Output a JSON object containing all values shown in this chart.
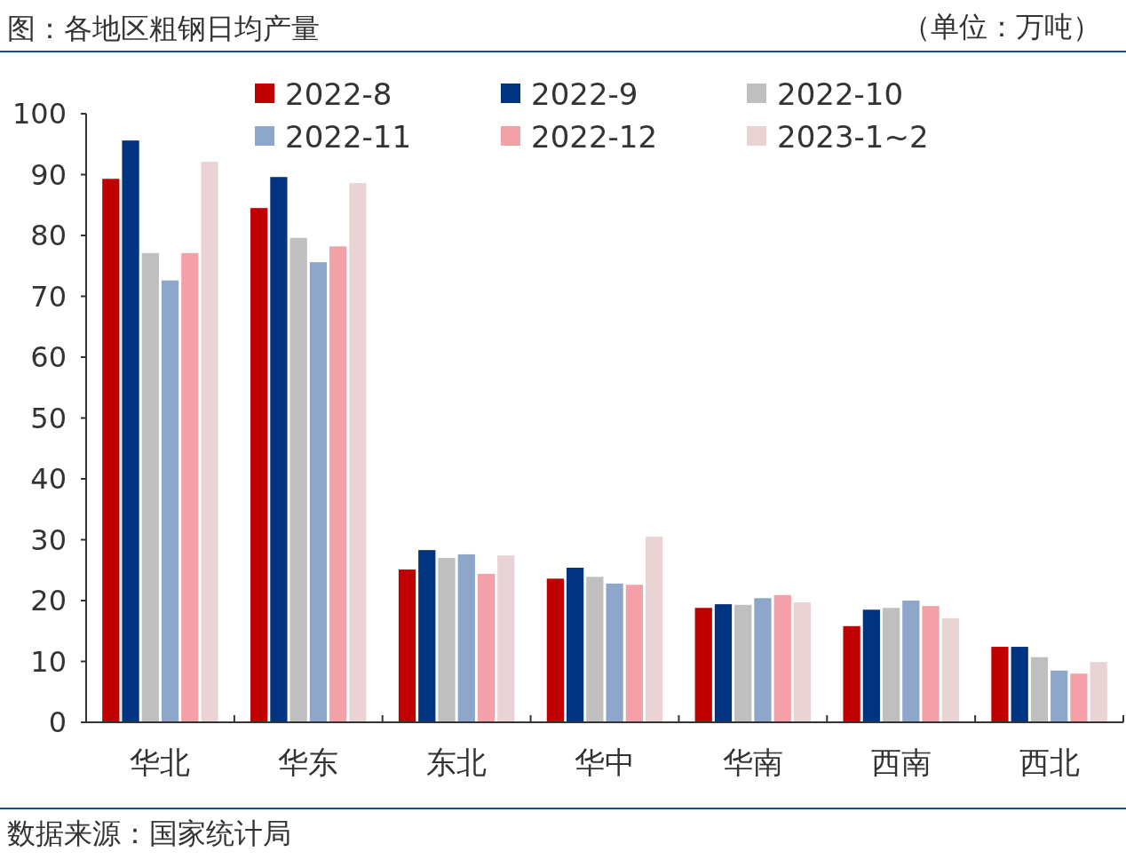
{
  "chart_data": {
    "type": "bar",
    "title": "图：各地区粗钢日均产量",
    "ylabel": "（单位：万吨）",
    "annotations": [
      "数据来源：国家统计局"
    ],
    "categories": [
      "华北",
      "华东",
      "东北",
      "华中",
      "华南",
      "西南",
      "西北"
    ],
    "series": [
      {
        "name": "2022-8",
        "color": "#c00000",
        "values": [
          89.3,
          84.5,
          25.1,
          23.6,
          18.8,
          15.8,
          12.4
        ]
      },
      {
        "name": "2022-9",
        "color": "#003380",
        "values": [
          95.6,
          89.6,
          28.3,
          25.4,
          19.4,
          18.5,
          12.4
        ]
      },
      {
        "name": "2022-10",
        "color": "#bfbfbf",
        "values": [
          77.1,
          79.6,
          27.0,
          23.9,
          19.3,
          18.8,
          10.7
        ]
      },
      {
        "name": "2022-11",
        "color": "#8ea6c9",
        "values": [
          72.6,
          75.6,
          27.6,
          22.8,
          20.4,
          20.0,
          8.5
        ]
      },
      {
        "name": "2022-12",
        "color": "#f4a0a8",
        "values": [
          77.1,
          78.2,
          24.4,
          22.6,
          20.9,
          19.1,
          8.0
        ]
      },
      {
        "name": "2023-1~2",
        "color": "#ead3d5",
        "values": [
          92.1,
          88.6,
          27.4,
          30.5,
          19.7,
          17.1,
          9.9
        ]
      }
    ],
    "ylim": [
      0,
      100
    ],
    "yticks": [
      0,
      10,
      20,
      30,
      40,
      50,
      60,
      70,
      80,
      90,
      100
    ],
    "legend": "top",
    "grid": false
  }
}
